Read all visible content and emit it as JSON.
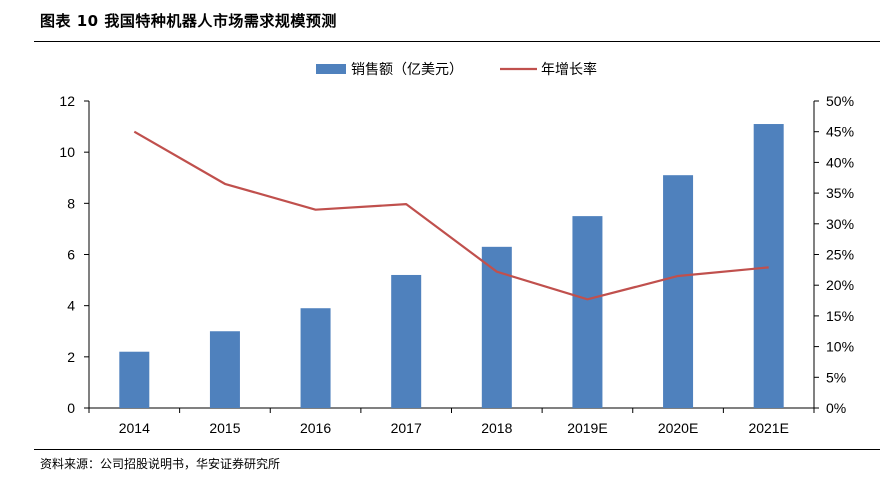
{
  "header": {
    "title": "图表 10 我国特种机器人市场需求规模预测"
  },
  "footer": {
    "source": "资料来源：公司招股说明书，华安证券研究所"
  },
  "chart_data": {
    "type": "bar+line",
    "title": "图表 10 我国特种机器人市场需求规模预测",
    "categories": [
      "2014",
      "2015",
      "2016",
      "2017",
      "2018",
      "2019E",
      "2020E",
      "2021E"
    ],
    "series": [
      {
        "name": "销售额（亿美元）",
        "type": "bar",
        "axis": "left",
        "color": "#4f81bd",
        "values": [
          2.2,
          3.0,
          3.9,
          5.2,
          6.3,
          7.5,
          9.1,
          11.1
        ]
      },
      {
        "name": "年增长率",
        "type": "line",
        "axis": "right",
        "color": "#c0504d",
        "values": [
          45.0,
          36.5,
          32.3,
          33.2,
          22.2,
          17.7,
          21.5,
          22.9
        ]
      }
    ],
    "left_axis": {
      "min": 0,
      "max": 12,
      "step": 2,
      "ticks": [
        "0",
        "2",
        "4",
        "6",
        "8",
        "10",
        "12"
      ]
    },
    "right_axis": {
      "min": 0,
      "max": 50,
      "step": 5,
      "ticks": [
        "0%",
        "5%",
        "10%",
        "15%",
        "20%",
        "25%",
        "30%",
        "35%",
        "40%",
        "45%",
        "50%"
      ]
    },
    "legend": {
      "position": "top-center"
    },
    "grid": false
  }
}
